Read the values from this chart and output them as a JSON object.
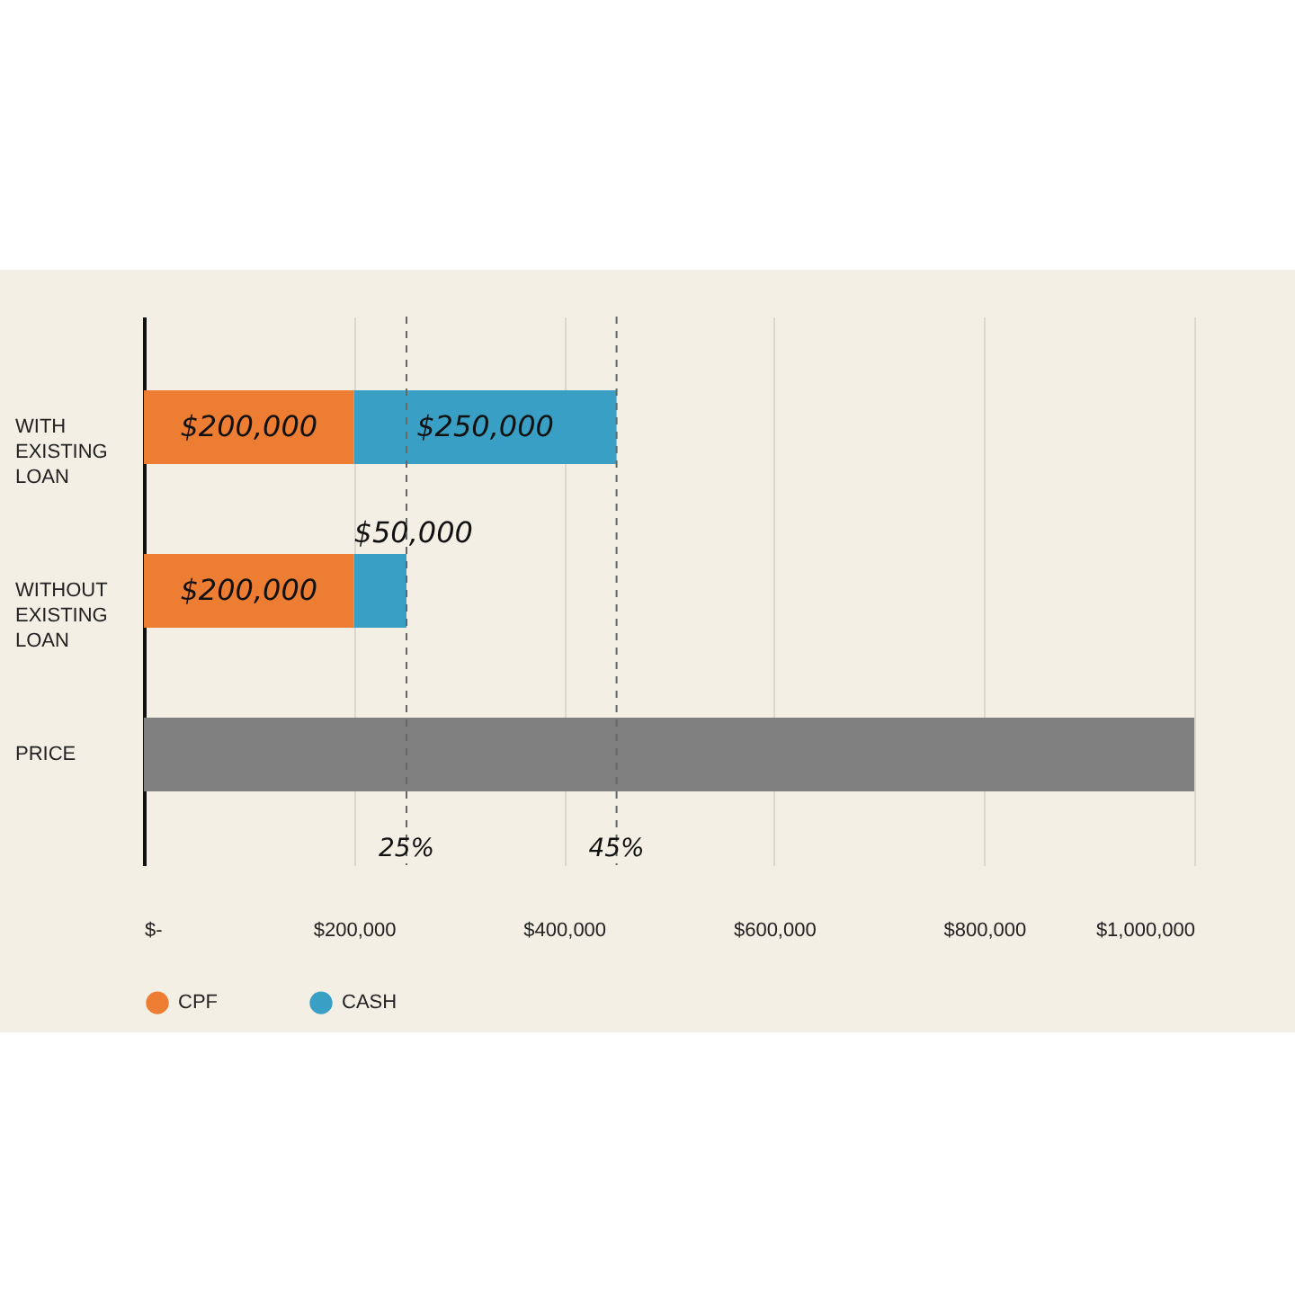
{
  "chart_data": {
    "type": "bar",
    "orientation": "horizontal",
    "stacked": true,
    "categories": [
      "WITH EXISTING LOAN",
      "WITHOUT EXISTING LOAN",
      "PRICE"
    ],
    "series": [
      {
        "name": "CPF",
        "color": "#ee7d34",
        "values": [
          200000,
          200000,
          null
        ],
        "value_labels": [
          "$200,000",
          "$200,000",
          null
        ]
      },
      {
        "name": "CASH",
        "color": "#3a9fc4",
        "values": [
          250000,
          50000,
          null
        ],
        "value_labels": [
          "$250,000",
          "$50,000",
          null
        ]
      },
      {
        "color": "#808080",
        "values": [
          null,
          null,
          1000000
        ]
      }
    ],
    "xlim": [
      0,
      1000000
    ],
    "xticks": [
      {
        "value": 0,
        "label": "$-"
      },
      {
        "value": 200000,
        "label": "$200,000"
      },
      {
        "value": 400000,
        "label": "$400,000"
      },
      {
        "value": 600000,
        "label": "$600,000"
      },
      {
        "value": 800000,
        "label": "$800,000"
      },
      {
        "value": 1000000,
        "label": "$1,000,000"
      }
    ],
    "grid": "x",
    "legend": "bottom",
    "ref_lines": [
      {
        "axis": "x",
        "value": 250000,
        "line_style": "dashed"
      },
      {
        "axis": "x",
        "value": 450000,
        "line_style": "dashed"
      }
    ],
    "annotations": [
      {
        "text": "25%",
        "x": 250000
      },
      {
        "text": "45%",
        "x": 450000
      }
    ]
  }
}
